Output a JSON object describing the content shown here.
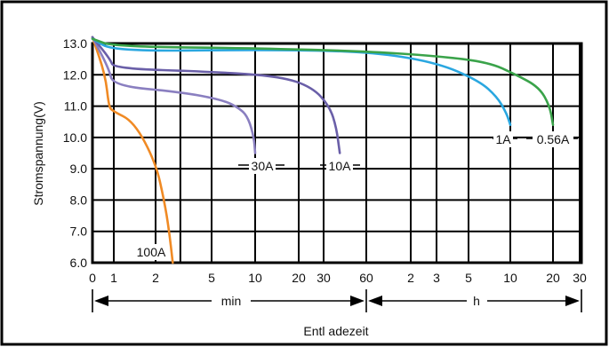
{
  "chart_data": {
    "type": "line",
    "title": "",
    "ylabel": "Stromspannung(V)",
    "xlabel": "Entl adezeit",
    "ylim": [
      6.0,
      13.0
    ],
    "y_ticks": [
      "13.0",
      "12.0",
      "11.0",
      "10.0",
      "9.0",
      "8.0",
      "7.0",
      "6.0"
    ],
    "x_ticks": [
      "0",
      "1",
      "2",
      "5",
      "10",
      "20",
      "30",
      "60",
      "2",
      "3",
      "5",
      "10",
      "20",
      "30"
    ],
    "x_minor_ticks": [
      "3"
    ],
    "x_axis_units": {
      "left": "min",
      "right": "h"
    },
    "x_scale": "log, minutes then hours",
    "grid": true,
    "series": [
      {
        "name": "100A",
        "color": "#f08a24",
        "points": [
          [
            0.05,
            13.2
          ],
          [
            0.3,
            12.0
          ],
          [
            0.5,
            11.0
          ],
          [
            0.8,
            10.85
          ],
          [
            1.4,
            10.5
          ],
          [
            2.0,
            9.2
          ],
          [
            2.3,
            8.0
          ],
          [
            2.5,
            7.0
          ],
          [
            2.65,
            6.0
          ]
        ]
      },
      {
        "name": "30A",
        "color": "#8a7fc0",
        "points": [
          [
            0.05,
            13.2
          ],
          [
            0.5,
            12.2
          ],
          [
            0.9,
            11.65
          ],
          [
            3,
            11.45
          ],
          [
            6,
            11.2
          ],
          [
            8,
            10.9
          ],
          [
            9,
            10.6
          ],
          [
            9.8,
            10.0
          ],
          [
            10,
            9.5
          ]
        ]
      },
      {
        "name": "10A",
        "color": "#6a5fa8",
        "points": [
          [
            0.05,
            13.2
          ],
          [
            0.6,
            12.5
          ],
          [
            1.0,
            12.2
          ],
          [
            5,
            12.1
          ],
          [
            15,
            11.95
          ],
          [
            25,
            11.6
          ],
          [
            33,
            11.0
          ],
          [
            37,
            10.3
          ],
          [
            39,
            9.5
          ]
        ]
      },
      {
        "name": "1A",
        "color": "#2aa7e0",
        "points": [
          [
            0.05,
            13.15
          ],
          [
            1.0,
            12.75
          ],
          [
            10,
            12.8
          ],
          [
            60,
            12.75
          ],
          [
            180,
            12.4
          ],
          [
            360,
            11.8
          ],
          [
            480,
            11.3
          ],
          [
            560,
            10.8
          ],
          [
            600,
            10.4
          ]
        ]
      },
      {
        "name": "0.56A",
        "color": "#3aa34a",
        "points": [
          [
            0.05,
            13.15
          ],
          [
            1.0,
            12.9
          ],
          [
            10,
            12.85
          ],
          [
            60,
            12.75
          ],
          [
            180,
            12.6
          ],
          [
            420,
            12.4
          ],
          [
            660,
            12.0
          ],
          [
            960,
            11.6
          ],
          [
            1140,
            11.0
          ],
          [
            1200,
            10.4
          ]
        ]
      }
    ]
  }
}
